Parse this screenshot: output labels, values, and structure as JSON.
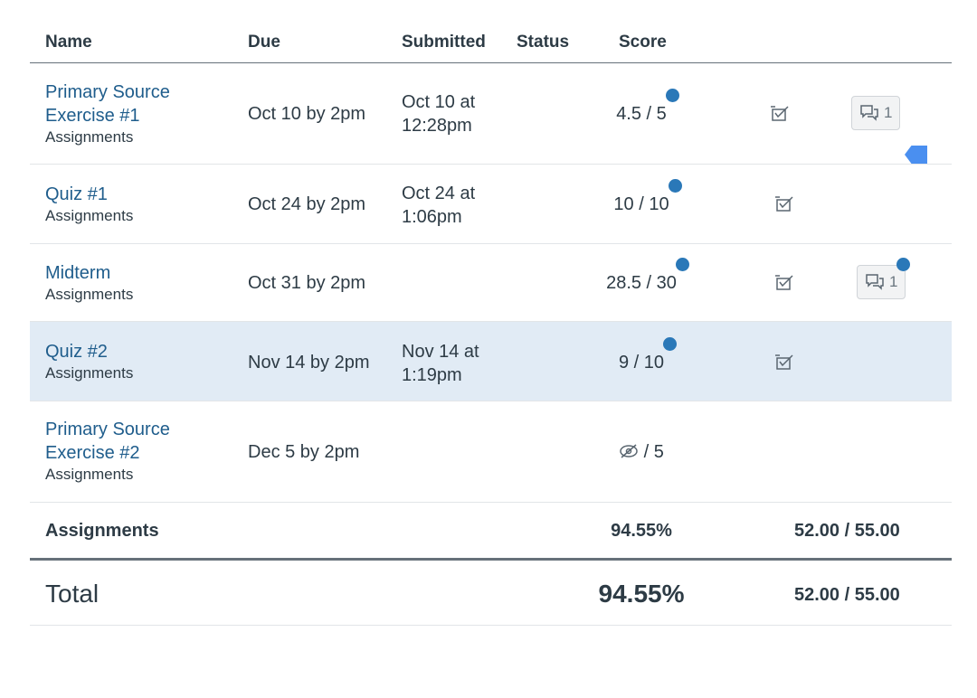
{
  "headers": {
    "name": "Name",
    "due": "Due",
    "submitted": "Submitted",
    "status": "Status",
    "score": "Score"
  },
  "rows": [
    {
      "title": "Primary Source\nExercise #1",
      "group": "Assignments",
      "due": "Oct 10 by 2pm",
      "submitted": "Oct 10 at\n12:28pm",
      "score": "4.5 / 5",
      "comments": "1"
    },
    {
      "title": "Quiz #1",
      "group": "Assignments",
      "due": "Oct 24 by 2pm",
      "submitted": "Oct 24 at\n1:06pm",
      "score": "10 / 10",
      "comments": ""
    },
    {
      "title": "Midterm",
      "group": "Assignments",
      "due": "Oct 31 by 2pm",
      "submitted": "",
      "score": "28.5 / 30",
      "comments": "1"
    },
    {
      "title": "Quiz #2",
      "group": "Assignments",
      "due": "Nov 14 by 2pm",
      "submitted": "Nov 14 at\n1:19pm",
      "score": "9 / 10",
      "comments": ""
    },
    {
      "title": "Primary Source\nExercise #2",
      "group": "Assignments",
      "due": "Dec 5 by 2pm",
      "submitted": "",
      "score": "/ 5",
      "comments": ""
    }
  ],
  "summary": {
    "label": "Assignments",
    "percent": "94.55%",
    "points": "52.00 / 55.00"
  },
  "total": {
    "label": "Total",
    "percent": "94.55%",
    "points": "52.00 / 55.00"
  },
  "colors": {
    "link": "#1f5d8c",
    "dot": "#2a78b8",
    "highlight": "#e1ebf5",
    "tag": "#4a8ff0"
  }
}
